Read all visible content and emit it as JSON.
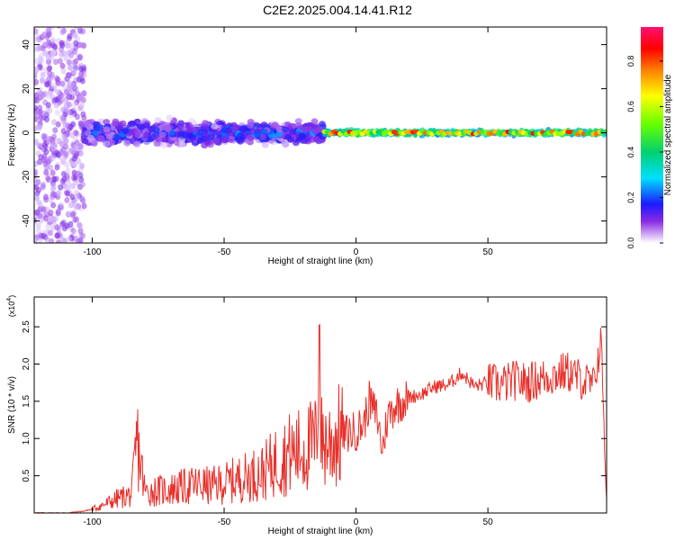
{
  "title": "C2E2.2025.004.14.41.R12",
  "chart_data": [
    {
      "type": "heatmap",
      "xlabel": "Height of straight line (km)",
      "ylabel": "Frequency (Hz)",
      "xlim": [
        -122,
        95
      ],
      "ylim": [
        -50,
        48
      ],
      "x_ticks": [
        -100,
        -50,
        0,
        50
      ],
      "y_ticks": [
        -40,
        -20,
        0,
        20,
        40
      ],
      "colorbar": {
        "label": "Normalized spectral amplitude",
        "range": [
          0,
          0.95
        ],
        "ticks": [
          "0.0",
          "0.2",
          "0.4",
          "0.6",
          "0.8"
        ],
        "tick_values": [
          0.0,
          0.2,
          0.4,
          0.6,
          0.8
        ]
      },
      "regions": [
        {
          "x": [
            -122,
            -103
          ],
          "freq_spread_hz": 50,
          "amplitude": 0.1
        },
        {
          "x": [
            -103,
            -50
          ],
          "freq_spread_hz": 8,
          "amplitude": 0.25
        },
        {
          "x": [
            -50,
            -12
          ],
          "freq_spread_hz": 6,
          "amplitude": 0.3
        },
        {
          "x": [
            -12,
            95
          ],
          "freq_spread_hz": 2,
          "amplitude": 0.6
        }
      ]
    },
    {
      "type": "line",
      "xlabel": "Height of straight line (km)",
      "ylabel": "SNR (10 * v/v)",
      "y_multiplier_label": "(x10",
      "y_multiplier_exp": "4",
      "xlim": [
        -122,
        95
      ],
      "ylim": [
        0,
        2.9
      ],
      "x_ticks": [
        -100,
        -50,
        0,
        50
      ],
      "y_ticks": [
        "0.5",
        "1.0",
        "1.5",
        "2.0",
        "2.5"
      ],
      "y_tick_values": [
        0.5,
        1.0,
        1.5,
        2.0,
        2.5
      ],
      "color": "#e8302a",
      "series": [
        {
          "x": [
            -122,
            -110,
            -104,
            -100,
            -95,
            -90,
            -85,
            -83,
            -80,
            -75,
            -70,
            -65,
            -60,
            -55,
            -50,
            -45,
            -40,
            -35,
            -30,
            -25,
            -20,
            -17,
            -15,
            -14,
            -13,
            -10,
            -5,
            0,
            3,
            5,
            8,
            10,
            12,
            15,
            20,
            25,
            30,
            35,
            40,
            45,
            50,
            55,
            60,
            65,
            70,
            75,
            80,
            85,
            90,
            93,
            95
          ],
          "values": [
            0.0,
            0.0,
            0.02,
            0.05,
            0.12,
            0.2,
            0.25,
            0.97,
            0.28,
            0.3,
            0.32,
            0.35,
            0.38,
            0.36,
            0.4,
            0.45,
            0.5,
            0.55,
            0.7,
            0.8,
            0.85,
            0.9,
            0.95,
            2.52,
            0.95,
            0.95,
            1.05,
            1.1,
            1.2,
            1.5,
            1.3,
            0.85,
            1.3,
            1.45,
            1.55,
            1.6,
            1.7,
            1.72,
            1.88,
            1.7,
            1.75,
            1.72,
            1.78,
            1.75,
            1.8,
            1.85,
            1.9,
            1.8,
            1.7,
            2.35,
            0.2
          ]
        }
      ]
    }
  ]
}
